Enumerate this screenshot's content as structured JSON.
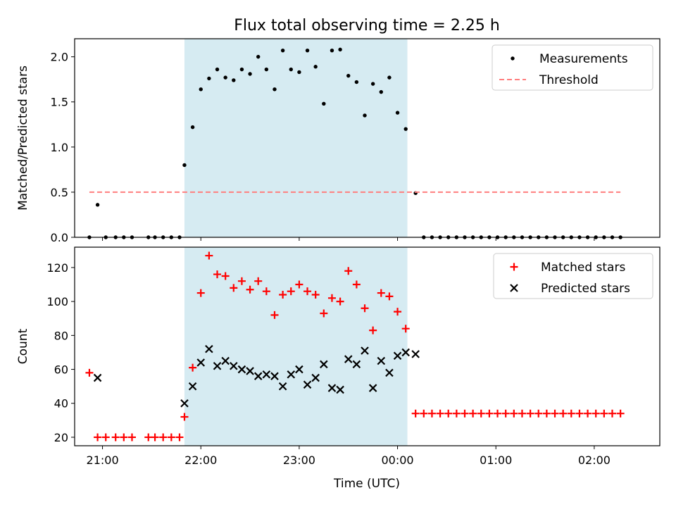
{
  "figure": {
    "title": "Flux total observing time = 2.25 h",
    "xlabel": "Time (UTC)"
  },
  "chart_data": [
    {
      "type": "scatter",
      "ylabel": "Matched/Predicted stars",
      "ylim": [
        0,
        2.2
      ],
      "yticks": [
        0.0,
        0.5,
        1.0,
        1.5,
        2.0
      ],
      "ytick_labels": [
        "0.0",
        "0.5",
        "1.0",
        "1.5",
        "2.0"
      ],
      "xlim": [
        "20:43",
        "02:40"
      ],
      "xticks": [
        "21:00",
        "22:00",
        "23:00",
        "00:00",
        "01:00",
        "02:00"
      ],
      "shaded_span": [
        "21:50",
        "00:06"
      ],
      "legend": "top-right",
      "grid": false,
      "series": [
        {
          "name": "Measurements",
          "marker": "dot",
          "color": "#000000",
          "x": [
            "20:52",
            "20:57",
            "21:02",
            "21:08",
            "21:13",
            "21:18",
            "21:28",
            "21:32",
            "21:37",
            "21:42",
            "21:47",
            "21:50",
            "21:55",
            "22:00",
            "22:05",
            "22:10",
            "22:15",
            "22:20",
            "22:25",
            "22:30",
            "22:35",
            "22:40",
            "22:45",
            "22:50",
            "22:55",
            "23:00",
            "23:05",
            "23:10",
            "23:15",
            "23:20",
            "23:25",
            "23:30",
            "23:35",
            "23:40",
            "23:45",
            "23:50",
            "23:55",
            "00:00",
            "00:05",
            "00:11",
            "00:16",
            "00:21",
            "00:26",
            "00:31",
            "00:36",
            "00:41",
            "00:46",
            "00:51",
            "00:56",
            "01:01",
            "01:06",
            "01:11",
            "01:16",
            "01:21",
            "01:26",
            "01:31",
            "01:36",
            "01:41",
            "01:46",
            "01:51",
            "01:56",
            "02:01",
            "02:06",
            "02:11",
            "02:16"
          ],
          "y": [
            0.0,
            0.36,
            0.0,
            0.0,
            0.0,
            0.0,
            0.0,
            0.0,
            0.0,
            0.0,
            0.0,
            0.8,
            1.22,
            1.64,
            1.76,
            1.86,
            1.77,
            1.74,
            1.86,
            1.81,
            2.0,
            1.86,
            1.64,
            2.07,
            1.86,
            1.83,
            2.07,
            1.89,
            1.48,
            2.07,
            2.08,
            1.79,
            1.72,
            1.35,
            1.7,
            1.61,
            1.77,
            1.38,
            1.2,
            0.49,
            0.0,
            0.0,
            0.0,
            0.0,
            0.0,
            0.0,
            0.0,
            0.0,
            0.0,
            0.0,
            0.0,
            0.0,
            0.0,
            0.0,
            0.0,
            0.0,
            0.0,
            0.0,
            0.0,
            0.0,
            0.0,
            0.0,
            0.0,
            0.0,
            0.0
          ]
        },
        {
          "name": "Threshold",
          "line": "dashed",
          "color": "#ff7f7f",
          "x": [
            "20:52",
            "02:16"
          ],
          "y": [
            0.5,
            0.5
          ]
        }
      ]
    },
    {
      "type": "scatter",
      "ylabel": "Count",
      "ylim": [
        15,
        132
      ],
      "yticks": [
        20,
        40,
        60,
        80,
        100,
        120
      ],
      "ytick_labels": [
        "20",
        "40",
        "60",
        "80",
        "100",
        "120"
      ],
      "xlim": [
        "20:43",
        "02:40"
      ],
      "xticks": [
        "21:00",
        "22:00",
        "23:00",
        "00:00",
        "01:00",
        "02:00"
      ],
      "xtick_labels": [
        "21:00",
        "22:00",
        "23:00",
        "00:00",
        "01:00",
        "02:00"
      ],
      "shaded_span": [
        "21:50",
        "00:06"
      ],
      "legend": "top-right",
      "grid": false,
      "series": [
        {
          "name": "Matched stars",
          "marker": "plus",
          "color": "#ff0000",
          "x": [
            "20:52",
            "20:57",
            "21:02",
            "21:08",
            "21:13",
            "21:18",
            "21:28",
            "21:32",
            "21:37",
            "21:42",
            "21:47",
            "21:50",
            "21:55",
            "22:00",
            "22:05",
            "22:10",
            "22:15",
            "22:20",
            "22:25",
            "22:30",
            "22:35",
            "22:40",
            "22:45",
            "22:50",
            "22:55",
            "23:00",
            "23:05",
            "23:10",
            "23:15",
            "23:20",
            "23:25",
            "23:30",
            "23:35",
            "23:40",
            "23:45",
            "23:50",
            "23:55",
            "00:00",
            "00:05",
            "00:11",
            "00:16",
            "00:21",
            "00:26",
            "00:31",
            "00:36",
            "00:41",
            "00:46",
            "00:51",
            "00:56",
            "01:01",
            "01:06",
            "01:11",
            "01:16",
            "01:21",
            "01:26",
            "01:31",
            "01:36",
            "01:41",
            "01:46",
            "01:51",
            "01:56",
            "02:01",
            "02:06",
            "02:11",
            "02:16"
          ],
          "y": [
            58,
            20,
            20,
            20,
            20,
            20,
            20,
            20,
            20,
            20,
            20,
            32,
            61,
            105,
            127,
            116,
            115,
            108,
            112,
            107,
            112,
            106,
            92,
            104,
            106,
            110,
            106,
            104,
            93,
            102,
            100,
            118,
            110,
            96,
            83,
            105,
            103,
            94,
            84,
            34,
            34,
            34,
            34,
            34,
            34,
            34,
            34,
            34,
            34,
            34,
            34,
            34,
            34,
            34,
            34,
            34,
            34,
            34,
            34,
            34,
            34,
            34,
            34,
            34,
            34
          ]
        },
        {
          "name": "Predicted stars",
          "marker": "x",
          "color": "#000000",
          "x": [
            "20:57",
            "21:50",
            "21:55",
            "22:00",
            "22:05",
            "22:10",
            "22:15",
            "22:20",
            "22:25",
            "22:30",
            "22:35",
            "22:40",
            "22:45",
            "22:50",
            "22:55",
            "23:00",
            "23:05",
            "23:10",
            "23:15",
            "23:20",
            "23:25",
            "23:30",
            "23:35",
            "23:40",
            "23:45",
            "23:50",
            "23:55",
            "00:00",
            "00:05",
            "00:11"
          ],
          "y": [
            55,
            40,
            50,
            64,
            72,
            62,
            65,
            62,
            60,
            59,
            56,
            57,
            56,
            50,
            57,
            60,
            51,
            55,
            63,
            49,
            48,
            66,
            63,
            71,
            49,
            65,
            58,
            68,
            70,
            69
          ]
        }
      ]
    }
  ]
}
